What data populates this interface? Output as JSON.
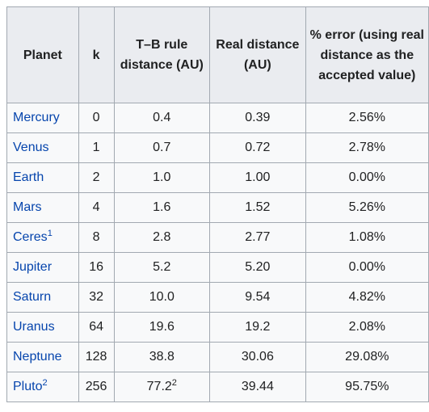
{
  "headers": {
    "planet": "Planet",
    "k": "k",
    "tb_distance": "T–B rule distance (AU)",
    "real_distance": "Real distance (AU)",
    "percent_error": "% error (using real distance as the accepted value)"
  },
  "rows": [
    {
      "planet": "Mercury",
      "sup": "",
      "k": "0",
      "tb": "0.4",
      "tb_sup": "",
      "real": "0.39",
      "err": "2.56%"
    },
    {
      "planet": "Venus",
      "sup": "",
      "k": "1",
      "tb": "0.7",
      "tb_sup": "",
      "real": "0.72",
      "err": "2.78%"
    },
    {
      "planet": "Earth",
      "sup": "",
      "k": "2",
      "tb": "1.0",
      "tb_sup": "",
      "real": "1.00",
      "err": "0.00%"
    },
    {
      "planet": "Mars",
      "sup": "",
      "k": "4",
      "tb": "1.6",
      "tb_sup": "",
      "real": "1.52",
      "err": "5.26%"
    },
    {
      "planet": "Ceres",
      "sup": "1",
      "k": "8",
      "tb": "2.8",
      "tb_sup": "",
      "real": "2.77",
      "err": "1.08%"
    },
    {
      "planet": "Jupiter",
      "sup": "",
      "k": "16",
      "tb": "5.2",
      "tb_sup": "",
      "real": "5.20",
      "err": "0.00%"
    },
    {
      "planet": "Saturn",
      "sup": "",
      "k": "32",
      "tb": "10.0",
      "tb_sup": "",
      "real": "9.54",
      "err": "4.82%"
    },
    {
      "planet": "Uranus",
      "sup": "",
      "k": "64",
      "tb": "19.6",
      "tb_sup": "",
      "real": "19.2",
      "err": "2.08%"
    },
    {
      "planet": "Neptune",
      "sup": "",
      "k": "128",
      "tb": "38.8",
      "tb_sup": "",
      "real": "30.06",
      "err": "29.08%"
    },
    {
      "planet": "Pluto",
      "sup": "2",
      "k": "256",
      "tb": "77.2",
      "tb_sup": "2",
      "real": "39.44",
      "err": "95.75%"
    }
  ],
  "colors": {
    "header_bg": "#eaecf0",
    "cell_bg": "#f8f9fa",
    "border": "#a2a9b1",
    "link": "#0645ad",
    "text": "#202122"
  }
}
